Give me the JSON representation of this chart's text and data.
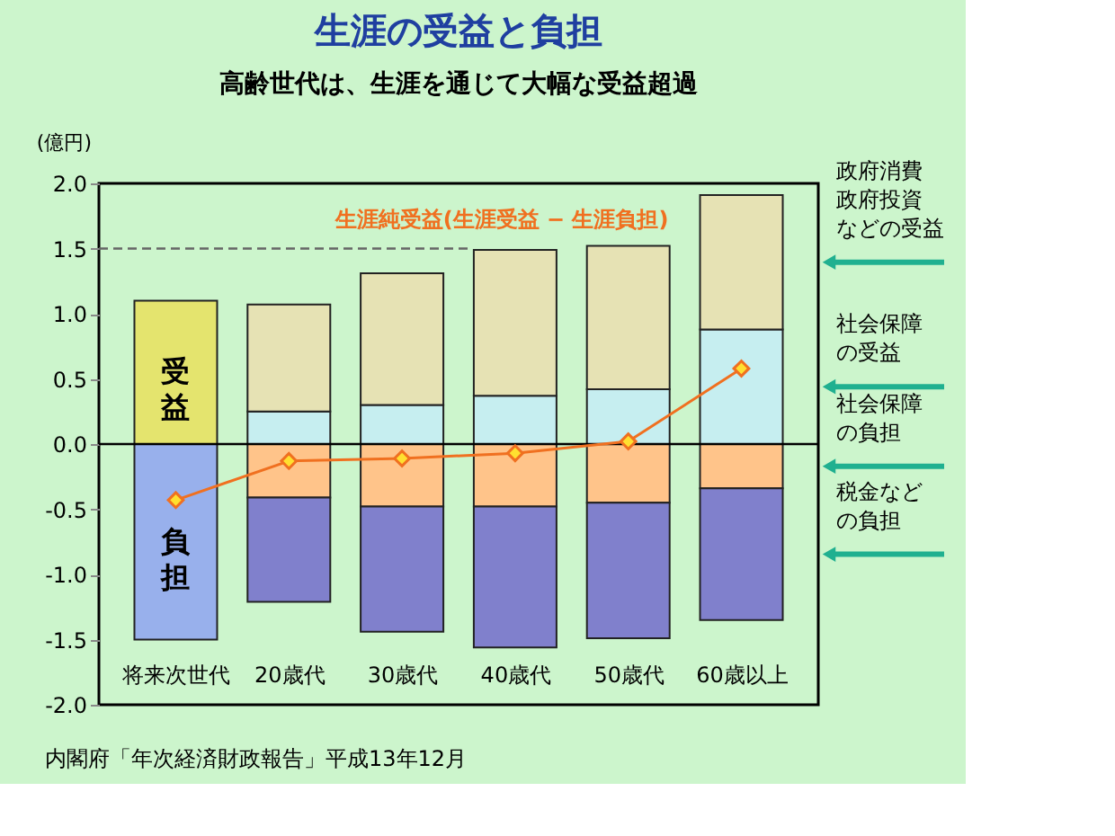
{
  "chart_data": {
    "type": "bar",
    "stacked": true,
    "title": "生涯の受益と負担",
    "subtitle": "高齢世代は、生涯を通じて大幅な受益超過",
    "ylabel": "(億円)",
    "categories": [
      "将来次世代",
      "20歳代",
      "30歳代",
      "40歳代",
      "50歳代",
      "60歳以上"
    ],
    "series": [
      {
        "name": "社会保障の受益",
        "color": "#c6eef0",
        "values": [
          null,
          0.25,
          0.3,
          0.37,
          0.42,
          0.88
        ]
      },
      {
        "name": "政府消費政府投資などの受益",
        "color": "#e6e2b4",
        "values": [
          null,
          0.82,
          1.01,
          1.12,
          1.1,
          1.03
        ]
      },
      {
        "name": "受益",
        "color": "#e4e46e",
        "values": [
          1.1,
          null,
          null,
          null,
          null,
          null
        ]
      },
      {
        "name": "社会保障の負担",
        "color": "#ffc48a",
        "values": [
          null,
          -0.41,
          -0.48,
          -0.48,
          -0.45,
          -0.34
        ]
      },
      {
        "name": "税金などの負担",
        "color": "#8080cc",
        "values": [
          null,
          -0.8,
          -0.96,
          -1.08,
          -1.04,
          -1.01
        ]
      },
      {
        "name": "負担",
        "color": "#98b0ec",
        "values": [
          -1.5,
          null,
          null,
          null,
          null,
          null
        ]
      },
      {
        "name": "生涯純受益(生涯受益 − 生涯負担)",
        "type": "line",
        "color": "#f07020",
        "values": [
          -0.43,
          -0.13,
          -0.11,
          -0.07,
          0.02,
          0.58
        ]
      }
    ],
    "marker": "diamond",
    "line_style": "solid",
    "ylim": [
      -2.0,
      2.0
    ],
    "yticks": [
      {
        "value": -2.0,
        "label": "-2.0"
      },
      {
        "value": -1.5,
        "label": "-1.5"
      },
      {
        "value": -1.0,
        "label": "-1.0"
      },
      {
        "value": -0.5,
        "label": "-0.5"
      },
      {
        "value": 0,
        "label": "0.0"
      },
      {
        "value": 0.5,
        "label": "0.5"
      },
      {
        "value": 1.0,
        "label": "1.0"
      },
      {
        "value": 1.5,
        "label": "1.5"
      },
      {
        "value": 2.0,
        "label": "2.0"
      }
    ],
    "ref_lines": [
      {
        "axis": "y",
        "value": 1.5,
        "line_style": "dashed",
        "color": "#666666"
      },
      {
        "axis": "y",
        "value": 0,
        "line_style": "solid",
        "color": "#000000"
      }
    ],
    "grid": false,
    "annotations": [
      "内閣府「年次経済財政報告」平成13年12月"
    ]
  }
}
